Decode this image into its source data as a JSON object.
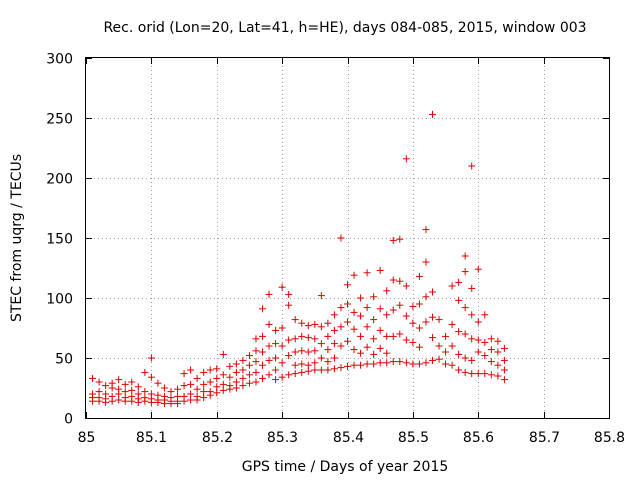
{
  "chart_data": {
    "type": "scatter",
    "title": "Rec. orid (Lon=20, Lat=41, h=HE), days 084-085, 2015, window 003",
    "xlabel": "GPS time / Days of year 2015",
    "ylabel": "STEC from uqrg / TECUs",
    "xlim": [
      85,
      85.8
    ],
    "ylim": [
      0,
      300
    ],
    "xticks": [
      "85",
      "85.1",
      "85.2",
      "85.3",
      "85.4",
      "85.5",
      "85.6",
      "85.7",
      "85.8"
    ],
    "yticks": [
      "0",
      "50",
      "100",
      "150",
      "200",
      "250",
      "300"
    ],
    "grid": true,
    "marker": "plus",
    "color": "#e00000",
    "series": [
      {
        "points": [
          [
            85.01,
            33
          ],
          [
            85.01,
            20
          ],
          [
            85.01,
            17
          ],
          [
            85.01,
            14
          ],
          [
            85.02,
            30
          ],
          [
            85.02,
            22
          ],
          [
            85.02,
            17
          ],
          [
            85.02,
            14
          ],
          [
            85.03,
            27
          ],
          [
            85.03,
            20
          ],
          [
            85.03,
            16
          ],
          [
            85.03,
            13
          ],
          [
            85.04,
            29
          ],
          [
            85.04,
            25
          ],
          [
            85.04,
            18
          ],
          [
            85.04,
            14
          ],
          [
            85.05,
            32
          ],
          [
            85.05,
            24
          ],
          [
            85.05,
            20
          ],
          [
            85.05,
            15
          ],
          [
            85.06,
            28
          ],
          [
            85.06,
            22
          ],
          [
            85.06,
            17
          ],
          [
            85.06,
            14
          ],
          [
            85.07,
            30
          ],
          [
            85.07,
            23
          ],
          [
            85.07,
            18
          ],
          [
            85.07,
            14
          ],
          [
            85.08,
            26
          ],
          [
            85.08,
            20
          ],
          [
            85.08,
            16
          ],
          [
            85.08,
            13
          ],
          [
            85.09,
            38
          ],
          [
            85.09,
            22
          ],
          [
            85.09,
            17
          ],
          [
            85.09,
            14
          ],
          [
            85.1,
            50
          ],
          [
            85.1,
            34
          ],
          [
            85.1,
            20
          ],
          [
            85.1,
            16
          ],
          [
            85.1,
            13
          ],
          [
            85.11,
            29
          ],
          [
            85.11,
            19
          ],
          [
            85.11,
            15
          ],
          [
            85.11,
            13
          ],
          [
            85.12,
            25
          ],
          [
            85.12,
            18
          ],
          [
            85.12,
            15
          ],
          [
            85.12,
            12
          ],
          [
            85.13,
            22
          ],
          [
            85.13,
            17
          ],
          [
            85.13,
            14
          ],
          [
            85.13,
            12
          ],
          [
            85.14,
            24
          ],
          [
            85.14,
            18
          ],
          [
            85.14,
            14
          ],
          [
            85.14,
            12
          ],
          [
            85.15,
            37
          ],
          [
            85.15,
            27
          ],
          [
            85.15,
            18
          ],
          [
            85.15,
            14
          ],
          [
            85.16,
            40
          ],
          [
            85.16,
            28
          ],
          [
            85.16,
            20
          ],
          [
            85.16,
            15
          ],
          [
            85.17,
            33
          ],
          [
            85.17,
            24
          ],
          [
            85.17,
            18
          ],
          [
            85.17,
            15
          ],
          [
            85.18,
            38
          ],
          [
            85.18,
            28
          ],
          [
            85.18,
            22
          ],
          [
            85.18,
            17
          ],
          [
            85.19,
            40
          ],
          [
            85.19,
            30
          ],
          [
            85.19,
            22
          ],
          [
            85.19,
            19
          ],
          [
            85.2,
            41
          ],
          [
            85.2,
            33
          ],
          [
            85.2,
            26
          ],
          [
            85.2,
            21
          ],
          [
            85.21,
            53
          ],
          [
            85.21,
            36
          ],
          [
            85.21,
            28
          ],
          [
            85.21,
            23
          ],
          [
            85.22,
            43
          ],
          [
            85.22,
            34
          ],
          [
            85.22,
            27
          ],
          [
            85.22,
            24
          ],
          [
            85.23,
            45
          ],
          [
            85.23,
            38
          ],
          [
            85.23,
            30
          ],
          [
            85.23,
            25
          ],
          [
            85.24,
            48
          ],
          [
            85.24,
            40
          ],
          [
            85.24,
            33
          ],
          [
            85.24,
            27
          ],
          [
            85.25,
            52
          ],
          [
            85.25,
            44
          ],
          [
            85.25,
            36
          ],
          [
            85.25,
            29
          ],
          [
            85.26,
            66
          ],
          [
            85.26,
            56
          ],
          [
            85.26,
            47
          ],
          [
            85.26,
            38
          ],
          [
            85.26,
            30
          ],
          [
            85.27,
            91
          ],
          [
            85.27,
            68
          ],
          [
            85.27,
            55
          ],
          [
            85.27,
            44
          ],
          [
            85.27,
            33
          ],
          [
            85.28,
            103
          ],
          [
            85.28,
            78
          ],
          [
            85.28,
            60
          ],
          [
            85.28,
            48
          ],
          [
            85.28,
            36
          ],
          [
            85.29,
            73
          ],
          [
            85.29,
            62
          ],
          [
            85.29,
            50
          ],
          [
            85.29,
            40
          ],
          [
            85.29,
            32
          ],
          [
            85.3,
            109
          ],
          [
            85.3,
            75
          ],
          [
            85.3,
            60
          ],
          [
            85.3,
            46
          ],
          [
            85.3,
            34
          ],
          [
            85.31,
            103
          ],
          [
            85.31,
            94
          ],
          [
            85.31,
            65
          ],
          [
            85.31,
            52
          ],
          [
            85.31,
            36
          ],
          [
            85.32,
            82
          ],
          [
            85.32,
            66
          ],
          [
            85.32,
            55
          ],
          [
            85.32,
            44
          ],
          [
            85.32,
            37
          ],
          [
            85.33,
            79
          ],
          [
            85.33,
            68
          ],
          [
            85.33,
            56
          ],
          [
            85.33,
            45
          ],
          [
            85.33,
            38
          ],
          [
            85.34,
            77
          ],
          [
            85.34,
            67
          ],
          [
            85.34,
            55
          ],
          [
            85.34,
            44
          ],
          [
            85.34,
            39
          ],
          [
            85.35,
            78
          ],
          [
            85.35,
            66
          ],
          [
            85.35,
            56
          ],
          [
            85.35,
            46
          ],
          [
            85.35,
            40
          ],
          [
            85.36,
            102
          ],
          [
            85.36,
            76
          ],
          [
            85.36,
            62
          ],
          [
            85.36,
            50
          ],
          [
            85.36,
            40
          ],
          [
            85.37,
            79
          ],
          [
            85.37,
            68
          ],
          [
            85.37,
            57
          ],
          [
            85.37,
            47
          ],
          [
            85.37,
            40
          ],
          [
            85.38,
            86
          ],
          [
            85.38,
            73
          ],
          [
            85.38,
            62
          ],
          [
            85.38,
            50
          ],
          [
            85.38,
            41
          ],
          [
            85.39,
            150
          ],
          [
            85.39,
            92
          ],
          [
            85.39,
            76
          ],
          [
            85.39,
            60
          ],
          [
            85.39,
            42
          ],
          [
            85.4,
            111
          ],
          [
            85.4,
            95
          ],
          [
            85.4,
            80
          ],
          [
            85.4,
            64
          ],
          [
            85.4,
            43
          ],
          [
            85.41,
            119
          ],
          [
            85.41,
            88
          ],
          [
            85.41,
            74
          ],
          [
            85.41,
            57
          ],
          [
            85.41,
            44
          ],
          [
            85.42,
            100
          ],
          [
            85.42,
            85
          ],
          [
            85.42,
            68
          ],
          [
            85.42,
            54
          ],
          [
            85.42,
            44
          ],
          [
            85.43,
            121
          ],
          [
            85.43,
            92
          ],
          [
            85.43,
            76
          ],
          [
            85.43,
            59
          ],
          [
            85.43,
            45
          ],
          [
            85.44,
            101
          ],
          [
            85.44,
            82
          ],
          [
            85.44,
            66
          ],
          [
            85.44,
            53
          ],
          [
            85.44,
            45
          ],
          [
            85.45,
            123
          ],
          [
            85.45,
            91
          ],
          [
            85.45,
            73
          ],
          [
            85.45,
            58
          ],
          [
            85.45,
            46
          ],
          [
            85.46,
            106
          ],
          [
            85.46,
            86
          ],
          [
            85.46,
            68
          ],
          [
            85.46,
            54
          ],
          [
            85.46,
            46
          ],
          [
            85.47,
            148
          ],
          [
            85.47,
            115
          ],
          [
            85.47,
            90
          ],
          [
            85.47,
            68
          ],
          [
            85.47,
            47
          ],
          [
            85.48,
            149
          ],
          [
            85.48,
            114
          ],
          [
            85.48,
            94
          ],
          [
            85.48,
            70
          ],
          [
            85.48,
            47
          ],
          [
            85.49,
            216
          ],
          [
            85.49,
            110
          ],
          [
            85.49,
            85
          ],
          [
            85.49,
            65
          ],
          [
            85.49,
            46
          ],
          [
            85.5,
            93
          ],
          [
            85.5,
            79
          ],
          [
            85.5,
            63
          ],
          [
            85.5,
            45
          ],
          [
            85.51,
            118
          ],
          [
            85.51,
            95
          ],
          [
            85.51,
            75
          ],
          [
            85.51,
            59
          ],
          [
            85.51,
            45
          ],
          [
            85.52,
            157
          ],
          [
            85.52,
            130
          ],
          [
            85.52,
            101
          ],
          [
            85.52,
            80
          ],
          [
            85.52,
            46
          ],
          [
            85.53,
            253
          ],
          [
            85.53,
            105
          ],
          [
            85.53,
            84
          ],
          [
            85.53,
            67
          ],
          [
            85.53,
            48
          ],
          [
            85.54,
            82
          ],
          [
            85.54,
            60
          ],
          [
            85.54,
            49
          ],
          [
            85.55,
            68
          ],
          [
            85.55,
            55
          ],
          [
            85.55,
            45
          ],
          [
            85.56,
            110
          ],
          [
            85.56,
            78
          ],
          [
            85.56,
            60
          ],
          [
            85.56,
            44
          ],
          [
            85.57,
            113
          ],
          [
            85.57,
            98
          ],
          [
            85.57,
            72
          ],
          [
            85.57,
            53
          ],
          [
            85.57,
            40
          ],
          [
            85.58,
            135
          ],
          [
            85.58,
            122
          ],
          [
            85.58,
            92
          ],
          [
            85.58,
            70
          ],
          [
            85.58,
            50
          ],
          [
            85.58,
            38
          ],
          [
            85.59,
            210
          ],
          [
            85.59,
            108
          ],
          [
            85.59,
            86
          ],
          [
            85.59,
            66
          ],
          [
            85.59,
            48
          ],
          [
            85.59,
            37
          ],
          [
            85.6,
            124
          ],
          [
            85.6,
            80
          ],
          [
            85.6,
            65
          ],
          [
            85.6,
            55
          ],
          [
            85.6,
            37
          ],
          [
            85.61,
            86
          ],
          [
            85.61,
            63
          ],
          [
            85.61,
            52
          ],
          [
            85.61,
            37
          ],
          [
            85.62,
            66
          ],
          [
            85.62,
            57
          ],
          [
            85.62,
            47
          ],
          [
            85.62,
            36
          ],
          [
            85.63,
            64
          ],
          [
            85.63,
            55
          ],
          [
            85.63,
            44
          ],
          [
            85.63,
            35
          ],
          [
            85.64,
            58
          ],
          [
            85.64,
            48
          ],
          [
            85.64,
            40
          ],
          [
            85.64,
            32
          ]
        ]
      }
    ]
  }
}
